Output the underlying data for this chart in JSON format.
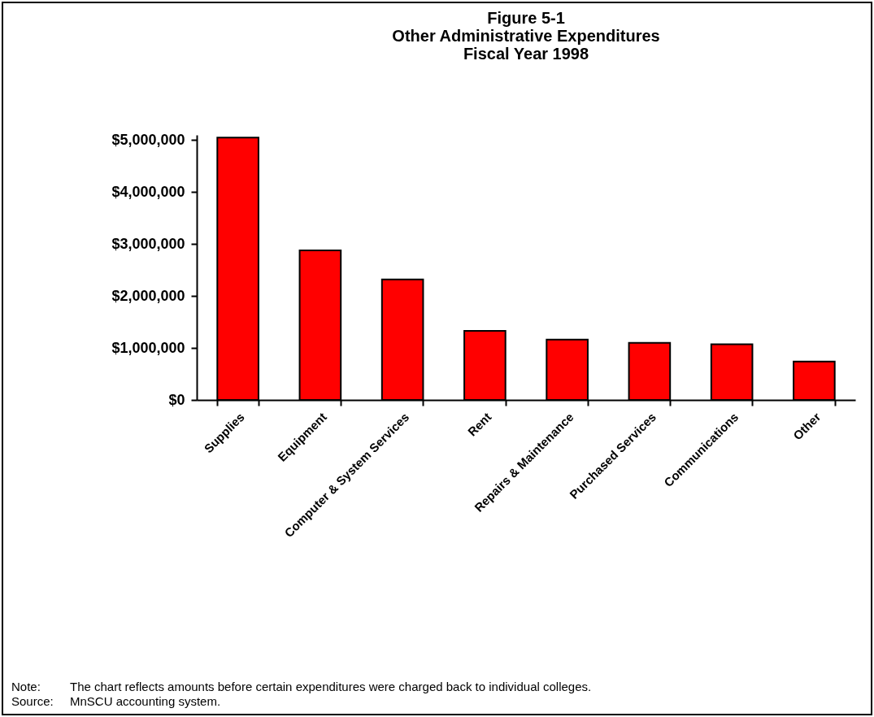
{
  "chart_data": {
    "type": "bar",
    "title": "Figure 5-1\nOther Administrative Expenditures\nFiscal Year 1998",
    "categories": [
      "Supplies",
      "Equipment",
      "Computer & System Services",
      "Rent",
      "Repairs & Maintenance",
      "Purchased Services",
      "Communications",
      "Other"
    ],
    "values": [
      5050000,
      2880000,
      2320000,
      1330000,
      1160000,
      1100000,
      1070000,
      740000
    ],
    "color": "#ff0000",
    "ylim": [
      0,
      5100000
    ],
    "yticks": [
      {
        "value": 0,
        "label": "$0"
      },
      {
        "value": 1000000,
        "label": "$1,000,000"
      },
      {
        "value": 2000000,
        "label": "$2,000,000"
      },
      {
        "value": 3000000,
        "label": "$3,000,000"
      },
      {
        "value": 4000000,
        "label": "$4,000,000"
      },
      {
        "value": 5000000,
        "label": "$5,000,000"
      }
    ],
    "annotations": [
      "Note:\tThe chart reflects amounts before certain expenditures were charged back to individual colleges.",
      "Source:\tMnSCU accounting system."
    ]
  }
}
